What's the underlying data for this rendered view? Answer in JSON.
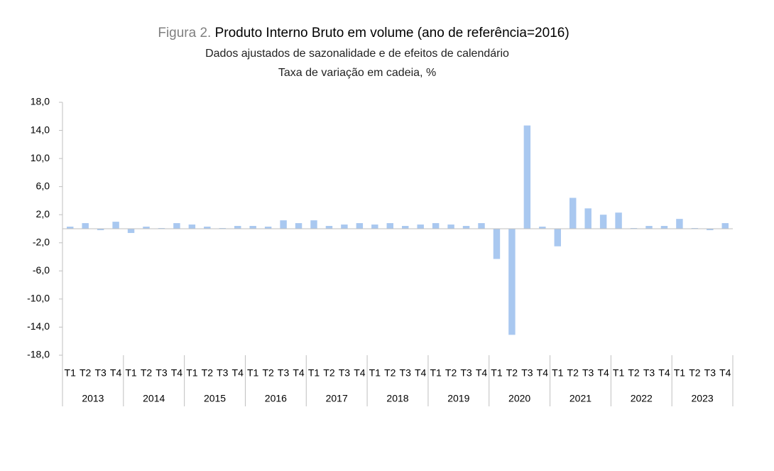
{
  "chart_data": {
    "type": "bar",
    "figure_label": "Figura 2.",
    "title": "Produto Interno Bruto em volume (ano de referência=2016)",
    "subtitle": [
      "Dados ajustados de sazonalidade e de efeitos de calendário",
      "Taxa de variação em cadeia, %"
    ],
    "categories": [
      "T1",
      "T2",
      "T3",
      "T4",
      "T1",
      "T2",
      "T3",
      "T4",
      "T1",
      "T2",
      "T3",
      "T4",
      "T1",
      "T2",
      "T3",
      "T4",
      "T1",
      "T2",
      "T3",
      "T4",
      "T1",
      "T2",
      "T3",
      "T4",
      "T1",
      "T2",
      "T3",
      "T4",
      "T1",
      "T2",
      "T3",
      "T4",
      "T1",
      "T2",
      "T3",
      "T4",
      "T1",
      "T2",
      "T3",
      "T4",
      "T1",
      "T2",
      "T3",
      "T4"
    ],
    "groups": [
      "2013",
      "2014",
      "2015",
      "2016",
      "2017",
      "2018",
      "2019",
      "2020",
      "2021",
      "2022",
      "2023"
    ],
    "values": [
      0.3,
      0.8,
      -0.2,
      1.0,
      -0.6,
      0.3,
      0.1,
      0.8,
      0.6,
      0.3,
      0.1,
      0.4,
      0.4,
      0.3,
      1.2,
      0.8,
      1.2,
      0.4,
      0.6,
      0.8,
      0.6,
      0.8,
      0.4,
      0.6,
      0.8,
      0.6,
      0.4,
      0.8,
      -4.3,
      -15.1,
      14.7,
      0.3,
      -2.5,
      4.4,
      2.9,
      2.0,
      2.3,
      0.1,
      0.4,
      0.4,
      1.4,
      0.1,
      -0.2,
      0.8
    ],
    "color": "#a9c8f0",
    "ylim": [
      -18,
      18
    ],
    "yticks": [
      {
        "value": 18,
        "label": "18,0"
      },
      {
        "value": 14,
        "label": "14,0"
      },
      {
        "value": 10,
        "label": "10,0"
      },
      {
        "value": 6,
        "label": "6,0"
      },
      {
        "value": 2,
        "label": "2,0"
      },
      {
        "value": -2,
        "label": "-2,0"
      },
      {
        "value": -6,
        "label": "-6,0"
      },
      {
        "value": -10,
        "label": "-10,0"
      },
      {
        "value": -14,
        "label": "-14,0"
      },
      {
        "value": -18,
        "label": "-18,0"
      }
    ]
  }
}
